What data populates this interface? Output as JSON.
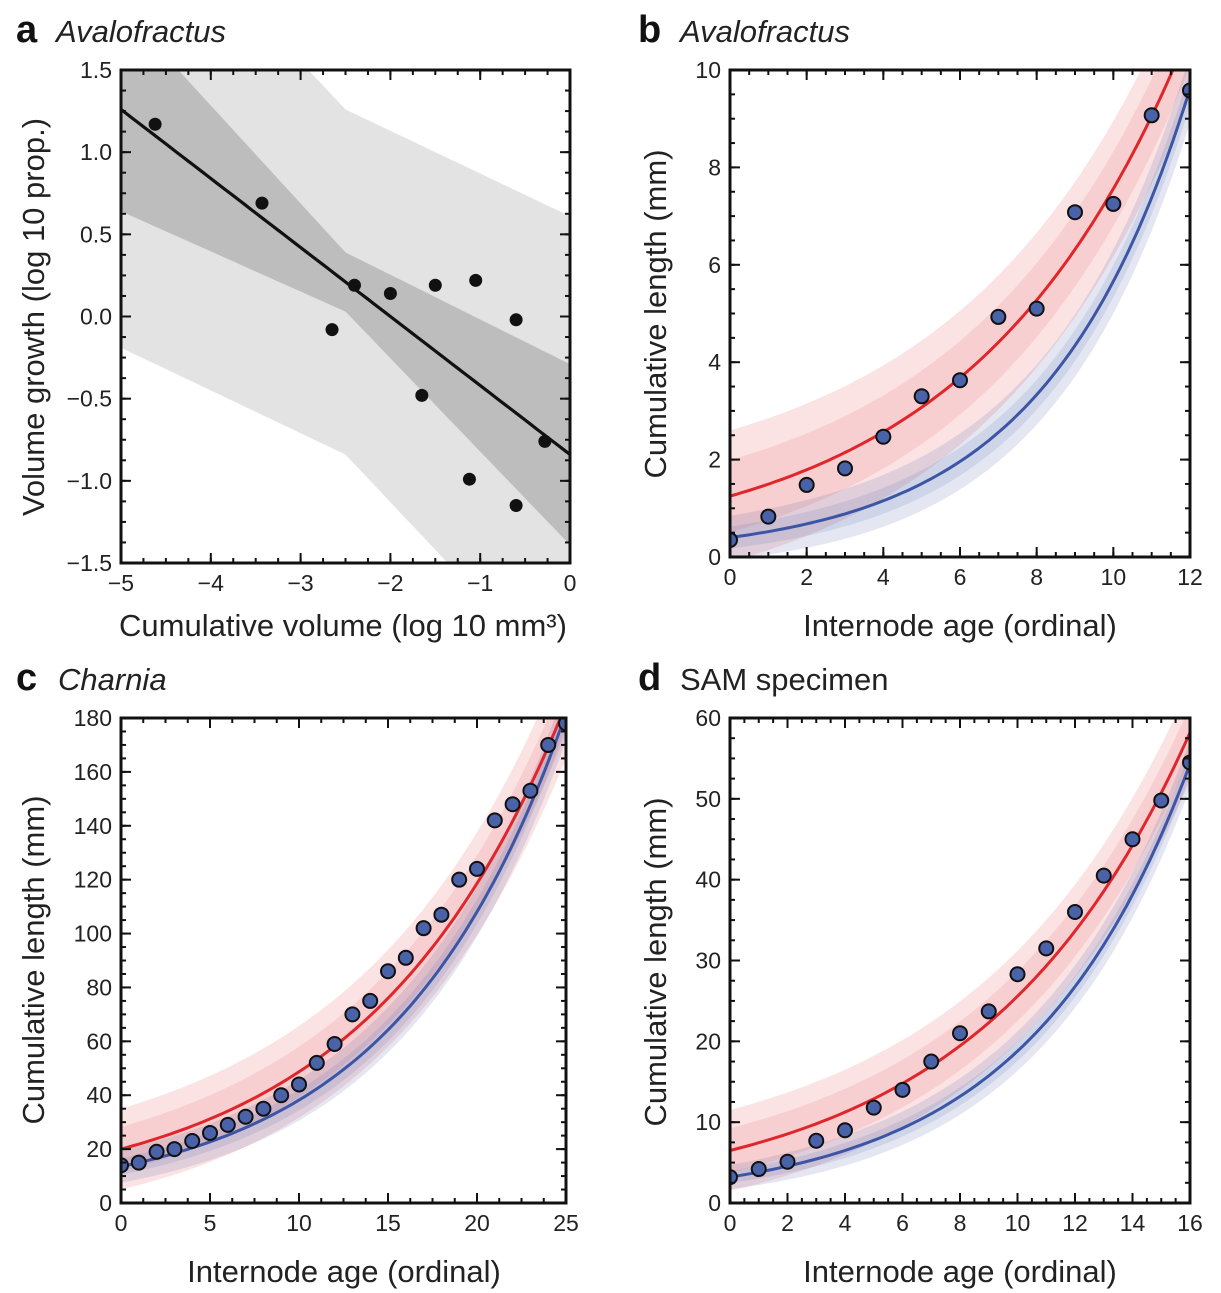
{
  "chart_data": [
    {
      "panel": "a",
      "type": "scatter",
      "title": "Avalofractus",
      "title_italic": true,
      "xlabel": "Cumulative volume (log 10 mm³)",
      "ylabel": "Volume growth (log 10 prop.)",
      "xlim": [
        -5,
        0
      ],
      "ylim": [
        -1.5,
        1.5
      ],
      "xticks": [
        -5,
        -4,
        -3,
        -2,
        -1,
        0
      ],
      "yticks": [
        -1.5,
        -1.0,
        -0.5,
        0.0,
        0.5,
        1.0,
        1.5
      ],
      "xtick_labels": [
        "−5",
        "−4",
        "−3",
        "−2",
        "−1",
        "0"
      ],
      "ytick_labels": [
        "−1.5",
        "−1.0",
        "−0.5",
        "0.0",
        "0.5",
        "1.0",
        "1.5"
      ],
      "point_color": "#111111",
      "line_color": "#111111",
      "inner_band_color": "#a9a9a9",
      "outer_band_color": "#d9d9d9",
      "points": {
        "x": [
          -4.62,
          -3.43,
          -2.65,
          -2.4,
          -2.0,
          -1.65,
          -1.5,
          -1.12,
          -1.05,
          -0.6,
          -0.6,
          -0.28
        ],
        "y": [
          1.17,
          0.69,
          -0.08,
          0.19,
          0.14,
          -0.48,
          0.19,
          -0.99,
          0.22,
          -1.15,
          -0.02,
          -0.76
        ]
      },
      "fit": {
        "intercept": -0.84,
        "slope": -0.42
      },
      "inner_band": {
        "x": [
          -5,
          -2.5,
          0
        ],
        "halfwidth": [
          0.62,
          0.18,
          0.55
        ]
      },
      "outer_band": {
        "x": [
          -5,
          -2.5,
          0
        ],
        "halfwidth": [
          1.45,
          1.05,
          1.45
        ]
      }
    },
    {
      "panel": "b",
      "type": "scatter",
      "title": "Avalofractus",
      "title_italic": true,
      "xlabel": "Internode age (ordinal)",
      "ylabel": "Cumulative length (mm)",
      "xlim": [
        0,
        12
      ],
      "ylim": [
        0,
        10
      ],
      "xticks": [
        0,
        2,
        4,
        6,
        8,
        10,
        12
      ],
      "yticks": [
        0,
        2,
        4,
        6,
        8,
        10
      ],
      "xtick_labels": [
        "0",
        "2",
        "4",
        "6",
        "8",
        "10",
        "12"
      ],
      "ytick_labels": [
        "0",
        "2",
        "4",
        "6",
        "8",
        "10"
      ],
      "point_color": "#4a62a8",
      "blue_color": "#3d55a5",
      "red_color": "#e0262b",
      "points": {
        "x": [
          0,
          1,
          2,
          3,
          4,
          5,
          6,
          7,
          8,
          9,
          10,
          11,
          12
        ],
        "y": [
          0.35,
          0.83,
          1.48,
          1.82,
          2.47,
          3.3,
          3.63,
          4.93,
          5.1,
          7.08,
          7.25,
          9.07,
          9.58
        ]
      },
      "blue_fit": {
        "a": 0.4,
        "b": 0.265,
        "c": 0.0
      },
      "red_fit": {
        "a": 1.25,
        "b": 0.18,
        "c": 0.0
      },
      "blue_band": {
        "halfwidth_start": 0.45,
        "halfwidth_end": 0.7
      },
      "red_band": {
        "halfwidth_start": 1.35,
        "halfwidth_end": 1.4
      }
    },
    {
      "panel": "c",
      "type": "scatter",
      "title": "Charnia",
      "title_italic": true,
      "xlabel": "Internode age (ordinal)",
      "ylabel": "Cumulative length (mm)",
      "xlim": [
        0,
        25
      ],
      "ylim": [
        0,
        180
      ],
      "xticks": [
        0,
        5,
        10,
        15,
        20,
        25
      ],
      "yticks": [
        0,
        20,
        40,
        60,
        80,
        100,
        120,
        140,
        160,
        180
      ],
      "xtick_labels": [
        "0",
        "5",
        "10",
        "15",
        "20",
        "25"
      ],
      "ytick_labels": [
        "0",
        "20",
        "40",
        "60",
        "80",
        "100",
        "120",
        "140",
        "160",
        "180"
      ],
      "point_color": "#4a62a8",
      "blue_color": "#3d55a5",
      "red_color": "#e0262b",
      "points": {
        "x": [
          0,
          1,
          2,
          3,
          4,
          5,
          6,
          7,
          8,
          9,
          10,
          11,
          12,
          13,
          14,
          15,
          16,
          17,
          18,
          19,
          20,
          21,
          22,
          23,
          24,
          25
        ],
        "y": [
          14,
          15,
          19,
          20,
          23,
          26,
          29,
          32,
          35,
          40,
          44,
          52,
          59,
          70,
          75,
          86,
          91,
          102,
          107,
          120,
          124,
          142,
          148,
          153,
          170,
          178
        ]
      },
      "blue_fit": {
        "a": 13.5,
        "b": 0.104,
        "c": 0.0
      },
      "red_fit": {
        "a": 20.0,
        "b": 0.089,
        "c": 0.0
      },
      "blue_band": {
        "halfwidth_start": 6,
        "halfwidth_end": 10
      },
      "red_band": {
        "halfwidth_start": 15,
        "halfwidth_end": 20
      }
    },
    {
      "panel": "d",
      "type": "scatter",
      "title": "SAM specimen",
      "title_italic": false,
      "xlabel": "Internode age (ordinal)",
      "ylabel": "Cumulative length (mm)",
      "xlim": [
        0,
        16
      ],
      "ylim": [
        0,
        60
      ],
      "xticks": [
        0,
        2,
        4,
        6,
        8,
        10,
        12,
        14,
        16
      ],
      "yticks": [
        0,
        10,
        20,
        30,
        40,
        50,
        60
      ],
      "xtick_labels": [
        "0",
        "2",
        "4",
        "6",
        "8",
        "10",
        "12",
        "14",
        "16"
      ],
      "ytick_labels": [
        "0",
        "10",
        "20",
        "30",
        "40",
        "50",
        "60"
      ],
      "point_color": "#4a62a8",
      "blue_color": "#3d55a5",
      "red_color": "#e0262b",
      "points": {
        "x": [
          0,
          1,
          2,
          3,
          4,
          5,
          6,
          7,
          8,
          9,
          10,
          11,
          12,
          13,
          14,
          15,
          16
        ],
        "y": [
          3.2,
          4.2,
          5.1,
          7.7,
          9.0,
          11.8,
          14.0,
          17.5,
          21.0,
          23.7,
          28.3,
          31.5,
          36.0,
          40.5,
          45.0,
          49.8,
          54.5
        ]
      },
      "blue_fit": {
        "a": 3.2,
        "b": 0.177,
        "c": 0.0
      },
      "red_fit": {
        "a": 6.5,
        "b": 0.137,
        "c": 0.0
      },
      "blue_band": {
        "halfwidth_start": 1.5,
        "halfwidth_end": 3
      },
      "red_band": {
        "halfwidth_start": 5,
        "halfwidth_end": 6
      }
    }
  ]
}
